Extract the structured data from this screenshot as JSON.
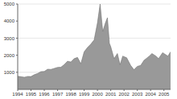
{
  "chart_data": {
    "type": "area",
    "x": [
      1994.0,
      1994.25,
      1994.5,
      1994.75,
      1995.0,
      1995.25,
      1995.5,
      1995.75,
      1996.0,
      1996.25,
      1996.5,
      1996.75,
      1997.0,
      1997.25,
      1997.5,
      1997.75,
      1998.0,
      1998.25,
      1998.5,
      1998.75,
      1999.0,
      1999.25,
      1999.5,
      1999.75,
      2000.0,
      2000.2,
      2000.4,
      2000.6,
      2000.75,
      2000.9,
      2001.0,
      2001.25,
      2001.5,
      2001.7,
      2001.9,
      2002.2,
      2002.5,
      2002.75,
      2003.0,
      2003.25,
      2003.5,
      2003.9,
      2004.1,
      2004.4,
      2004.6,
      2004.9,
      2005.1,
      2005.3,
      2005.5
    ],
    "values": [
      770,
      740,
      710,
      760,
      750,
      860,
      930,
      1040,
      1050,
      1180,
      1170,
      1230,
      1290,
      1300,
      1450,
      1650,
      1600,
      1800,
      1870,
      1500,
      2200,
      2450,
      2650,
      2900,
      3900,
      5000,
      3400,
      3900,
      4200,
      2700,
      2500,
      1800,
      2100,
      1450,
      1950,
      1850,
      1400,
      1150,
      1350,
      1400,
      1700,
      1950,
      2100,
      1950,
      1800,
      2150,
      2050,
      1950,
      2200
    ],
    "color": "#999999",
    "xlim": [
      1994,
      2005.5
    ],
    "xticks": [
      1994,
      1995,
      1996,
      1997,
      1998,
      1999,
      2000,
      2001,
      2002,
      2003,
      2004,
      2005
    ],
    "ylim": [
      0,
      5000
    ],
    "yticks": [
      1000,
      2000,
      3000,
      4000,
      5000
    ],
    "grid": true
  }
}
